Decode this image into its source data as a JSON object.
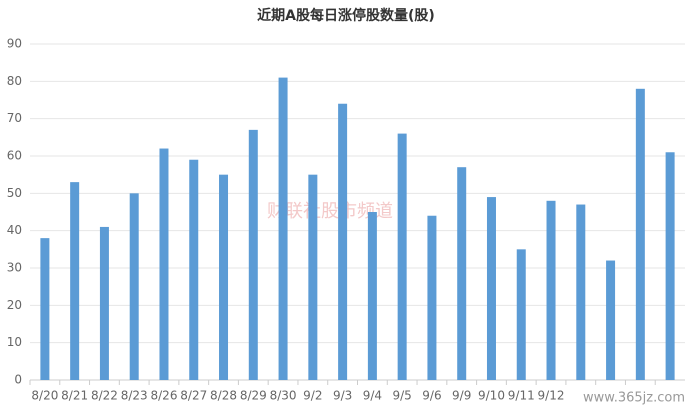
{
  "chart_data": {
    "type": "bar",
    "title": "近期A股每日涨停股数量(股)",
    "categories": [
      "8/20",
      "8/21",
      "8/22",
      "8/23",
      "8/26",
      "8/27",
      "8/28",
      "8/29",
      "8/30",
      "9/2",
      "9/3",
      "9/4",
      "9/5",
      "9/6",
      "9/9",
      "9/10",
      "9/11",
      "9/12",
      null,
      null,
      null,
      null
    ],
    "values": [
      38,
      53,
      41,
      50,
      62,
      59,
      55,
      67,
      81,
      55,
      74,
      45,
      66,
      44,
      57,
      49,
      35,
      48,
      47,
      32,
      78,
      61
    ],
    "color": "#5b9bd5",
    "ylim": [
      0,
      90
    ],
    "yticks": [
      0,
      10,
      20,
      30,
      40,
      50,
      60,
      70,
      80,
      90
    ],
    "grid": true,
    "watermarks": [
      "财联社股市频道",
      "www.365jz.com"
    ]
  }
}
